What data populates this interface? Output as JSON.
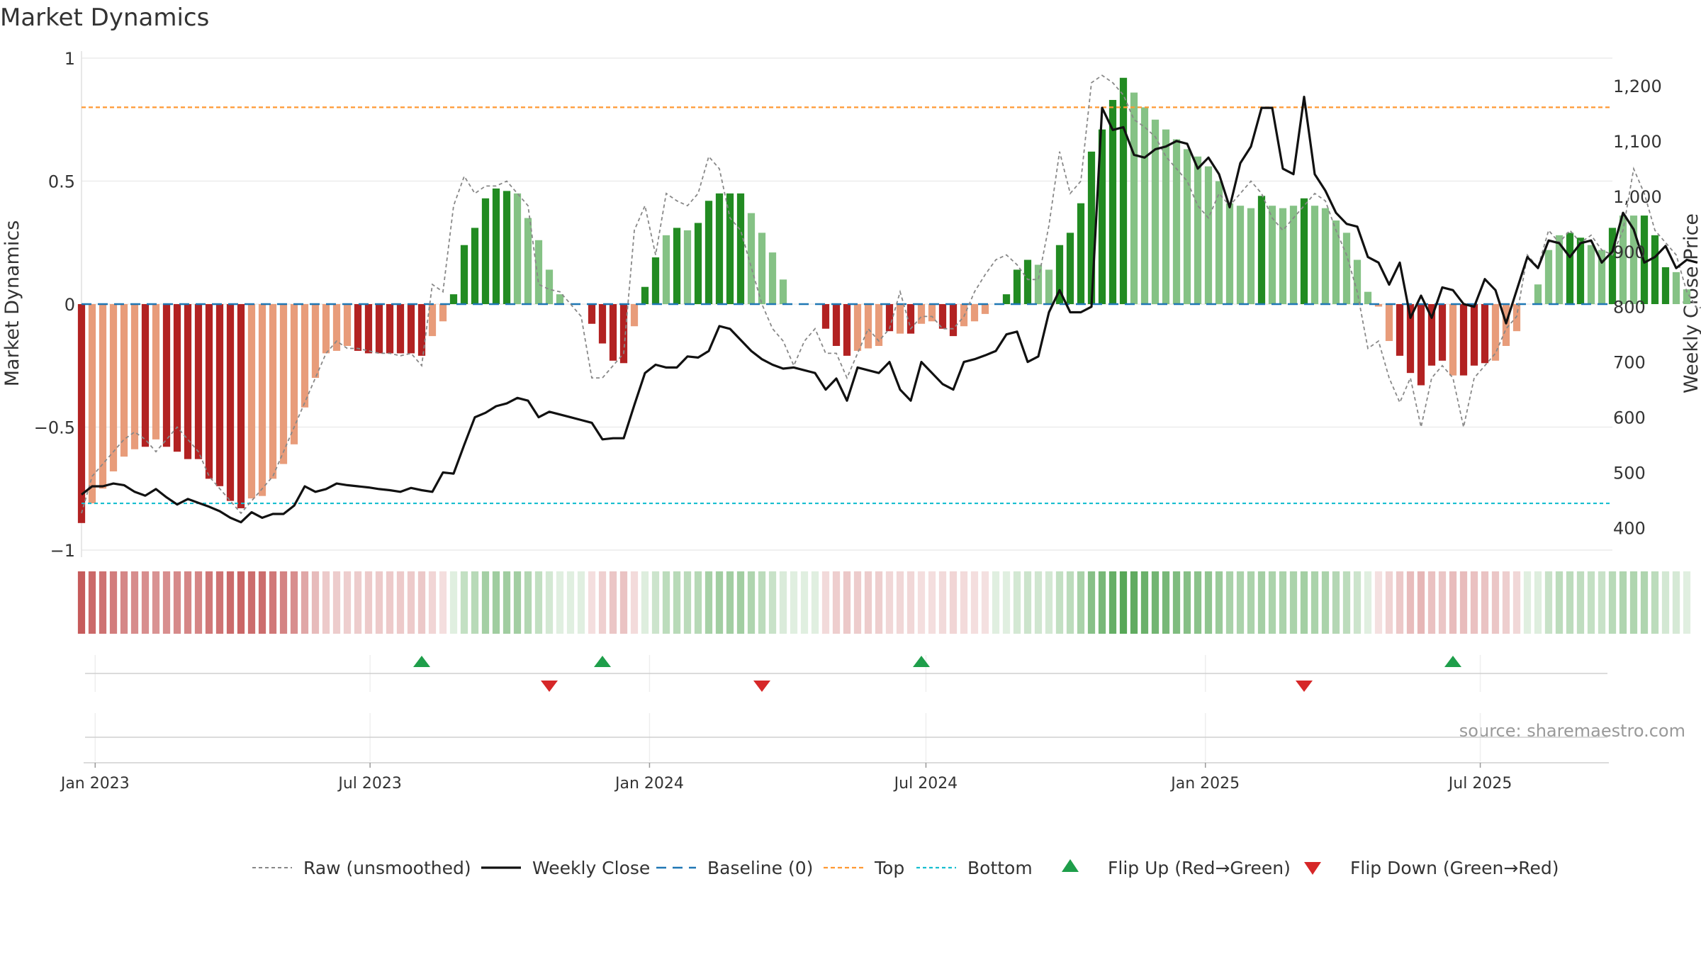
{
  "chart_data": {
    "type": "bar",
    "title": "Market Dynamics",
    "ylabel_left": "Market Dynamics",
    "ylabel_right": "Weekly Close Price",
    "source": "source: sharemaestro.com",
    "left_axis": {
      "ylim": [
        -1,
        1
      ],
      "ticks": [
        1,
        0.5,
        0,
        -0.5,
        -1
      ],
      "tick_labels": [
        "1",
        "0.5",
        "0",
        "−0.5",
        "−1"
      ]
    },
    "right_axis": {
      "ylim": [
        330,
        1250
      ],
      "ticks": [
        1200,
        1100,
        1000,
        900,
        800,
        700,
        600,
        500,
        400
      ],
      "tick_labels": [
        "1,200",
        "1,100",
        "1,000",
        "900",
        "800",
        "700",
        "600",
        "500",
        "400"
      ]
    },
    "x_axis": {
      "start": "2022-12-23",
      "end": "2025-09-26",
      "ticks": [
        "2023-01-01",
        "2023-07-01",
        "2024-01-01",
        "2024-07-01",
        "2025-01-01",
        "2025-07-01"
      ],
      "tick_labels": [
        "Jan 2023",
        "Jul 2023",
        "Jan 2024",
        "Jul 2024",
        "Jan 2025",
        "Jul 2025"
      ]
    },
    "reference_lines": {
      "top": 0.8,
      "bottom": -0.81,
      "baseline": 0
    },
    "colors": {
      "strong_green": "#228b22",
      "light_green": "#85c285",
      "strong_red": "#b22222",
      "light_red": "#e89c7a",
      "close": "#111111",
      "raw": "#888888",
      "baseline": "#1f77b4",
      "top": "#ff9933",
      "bottom": "#17becf",
      "flip_up": "#1e9e4a",
      "flip_down": "#d62728"
    },
    "series": [
      {
        "name": "Weekly Close",
        "dates_start": "2022-12-23",
        "interval_days": 7,
        "values": [
          460,
          475,
          475,
          480,
          477,
          465,
          458,
          470,
          455,
          442,
          452,
          445,
          438,
          430,
          418,
          410,
          428,
          418,
          425,
          425,
          440,
          475,
          465,
          470,
          480,
          477,
          475,
          473,
          470,
          468,
          465,
          472,
          468,
          465,
          500,
          498,
          550,
          600,
          608,
          620,
          625,
          635,
          630,
          600,
          610,
          605,
          600,
          595,
          590,
          560,
          562,
          562,
          622,
          680,
          695,
          690,
          690,
          710,
          708,
          720,
          765,
          760,
          740,
          720,
          705,
          695,
          688,
          690,
          685,
          680,
          650,
          670,
          630,
          690,
          685,
          680,
          700,
          650,
          630,
          700,
          680,
          660,
          650,
          700,
          705,
          712,
          720,
          750,
          755,
          700,
          710,
          790,
          830,
          790,
          790,
          800,
          1160,
          1120,
          1125,
          1075,
          1070,
          1085,
          1090,
          1100,
          1095,
          1050,
          1070,
          1040,
          980,
          1060,
          1090,
          1160,
          1160,
          1050,
          1040,
          1180,
          1040,
          1010,
          970,
          950,
          945,
          890,
          880,
          840,
          880,
          780,
          820,
          780,
          835,
          830,
          805,
          800,
          850,
          830,
          770,
          830,
          890,
          870,
          920,
          915,
          890,
          915,
          920,
          880,
          900,
          970,
          940,
          880,
          890,
          910,
          870,
          885,
          880
        ]
      },
      {
        "name": "Raw (unsmoothed)",
        "dates_start": "2022-12-23",
        "interval_days": 7,
        "values": [
          -0.85,
          -0.7,
          -0.65,
          -0.6,
          -0.55,
          -0.52,
          -0.55,
          -0.6,
          -0.55,
          -0.5,
          -0.55,
          -0.6,
          -0.7,
          -0.75,
          -0.8,
          -0.85,
          -0.8,
          -0.75,
          -0.7,
          -0.6,
          -0.5,
          -0.4,
          -0.3,
          -0.2,
          -0.15,
          -0.18,
          -0.18,
          -0.19,
          -0.2,
          -0.2,
          -0.21,
          -0.2,
          -0.25,
          0.08,
          0.05,
          0.4,
          0.52,
          0.45,
          0.48,
          0.48,
          0.5,
          0.45,
          0.4,
          0.08,
          0.06,
          0.05,
          0.0,
          -0.05,
          -0.3,
          -0.3,
          -0.25,
          -0.2,
          0.3,
          0.4,
          0.2,
          0.45,
          0.42,
          0.4,
          0.45,
          0.6,
          0.55,
          0.35,
          0.3,
          0.15,
          0.0,
          -0.1,
          -0.15,
          -0.25,
          -0.15,
          -0.1,
          -0.2,
          -0.2,
          -0.3,
          -0.2,
          -0.1,
          -0.15,
          -0.1,
          0.05,
          -0.1,
          -0.05,
          -0.05,
          -0.1,
          -0.1,
          -0.05,
          0.05,
          0.12,
          0.18,
          0.2,
          0.16,
          0.1,
          0.1,
          0.32,
          0.62,
          0.45,
          0.5,
          0.9,
          0.93,
          0.9,
          0.85,
          0.75,
          0.72,
          0.68,
          0.6,
          0.55,
          0.5,
          0.4,
          0.35,
          0.45,
          0.4,
          0.45,
          0.5,
          0.45,
          0.35,
          0.3,
          0.35,
          0.4,
          0.45,
          0.42,
          0.3,
          0.2,
          0.05,
          -0.18,
          -0.15,
          -0.3,
          -0.4,
          -0.3,
          -0.5,
          -0.3,
          -0.25,
          -0.3,
          -0.5,
          -0.3,
          -0.25,
          -0.2,
          -0.1,
          -0.05,
          0.2,
          0.15,
          0.3,
          0.25,
          0.3,
          0.25,
          0.28,
          0.22,
          0.2,
          0.3,
          0.55,
          0.45,
          0.3,
          0.25,
          0.2,
          0.05,
          -0.02,
          0.0
        ]
      },
      {
        "name": "Baseline (0)",
        "value": 0
      },
      {
        "name": "Top",
        "value": 0.8
      },
      {
        "name": "Bottom",
        "value": -0.81
      },
      {
        "name": "Flip Up (Red→Green)",
        "dates": [
          "2023-08-04",
          "2023-12-01",
          "2024-06-28",
          "2025-06-13"
        ]
      },
      {
        "name": "Flip Down (Green→Red)",
        "dates": [
          "2023-10-27",
          "2024-03-15",
          "2025-03-07"
        ]
      }
    ],
    "bars": {
      "dates_start": "2022-12-23",
      "interval_days": 7,
      "values": [
        -0.89,
        -0.81,
        -0.75,
        -0.68,
        -0.62,
        -0.59,
        -0.58,
        -0.55,
        -0.58,
        -0.6,
        -0.63,
        -0.63,
        -0.71,
        -0.74,
        -0.8,
        -0.83,
        -0.79,
        -0.78,
        -0.71,
        -0.65,
        -0.57,
        -0.42,
        -0.3,
        -0.2,
        -0.19,
        -0.17,
        -0.19,
        -0.2,
        -0.2,
        -0.2,
        -0.2,
        -0.2,
        -0.21,
        -0.13,
        -0.07,
        0.04,
        0.24,
        0.31,
        0.43,
        0.47,
        0.46,
        0.45,
        0.35,
        0.26,
        0.14,
        0.04,
        0.0,
        0.0,
        -0.08,
        -0.16,
        -0.23,
        -0.24,
        -0.09,
        0.07,
        0.19,
        0.28,
        0.31,
        0.3,
        0.33,
        0.42,
        0.45,
        0.45,
        0.45,
        0.37,
        0.29,
        0.21,
        0.1,
        0.0,
        0.0,
        0.0,
        -0.1,
        -0.17,
        -0.21,
        -0.19,
        -0.18,
        -0.17,
        -0.11,
        -0.12,
        -0.12,
        -0.08,
        -0.07,
        -0.1,
        -0.13,
        -0.09,
        -0.07,
        -0.04,
        0.0,
        0.04,
        0.14,
        0.18,
        0.16,
        0.14,
        0.24,
        0.29,
        0.41,
        0.62,
        0.71,
        0.83,
        0.92,
        0.86,
        0.8,
        0.75,
        0.71,
        0.67,
        0.63,
        0.6,
        0.56,
        0.5,
        0.41,
        0.4,
        0.39,
        0.44,
        0.4,
        0.39,
        0.4,
        0.43,
        0.4,
        0.39,
        0.34,
        0.29,
        0.18,
        0.05,
        -0.01,
        -0.15,
        -0.21,
        -0.28,
        -0.33,
        -0.25,
        -0.23,
        -0.29,
        -0.29,
        -0.25,
        -0.24,
        -0.23,
        -0.17,
        -0.11,
        0.0,
        0.08,
        0.22,
        0.28,
        0.29,
        0.27,
        0.24,
        0.22,
        0.31,
        0.36,
        0.36,
        0.36,
        0.28,
        0.15,
        0.13,
        0.06
      ],
      "strong": [
        1,
        0,
        0,
        0,
        0,
        0,
        1,
        0,
        1,
        1,
        1,
        1,
        1,
        1,
        1,
        1,
        0,
        0,
        0,
        0,
        0,
        0,
        0,
        0,
        0,
        0,
        1,
        1,
        1,
        1,
        1,
        1,
        1,
        0,
        0,
        1,
        1,
        1,
        1,
        1,
        1,
        0,
        0,
        0,
        0,
        0,
        0,
        0,
        1,
        1,
        1,
        1,
        0,
        1,
        1,
        0,
        1,
        0,
        1,
        1,
        1,
        1,
        1,
        0,
        0,
        0,
        0,
        0,
        0,
        0,
        1,
        1,
        1,
        0,
        0,
        0,
        1,
        0,
        1,
        0,
        0,
        1,
        1,
        0,
        0,
        0,
        0,
        1,
        1,
        1,
        0,
        0,
        1,
        1,
        1,
        1,
        1,
        1,
        1,
        0,
        0,
        0,
        0,
        0,
        0,
        0,
        0,
        0,
        0,
        0,
        0,
        1,
        0,
        0,
        0,
        1,
        0,
        0,
        0,
        0,
        0,
        0,
        0,
        0,
        1,
        1,
        1,
        1,
        1,
        0,
        1,
        1,
        1,
        0,
        0,
        0,
        0,
        0,
        0,
        0,
        1,
        1,
        0,
        0,
        1,
        0,
        0,
        1,
        1,
        1,
        0,
        0,
        0,
        0
      ]
    },
    "legend": [
      "Raw (unsmoothed)",
      "Weekly Close",
      "Baseline (0)",
      "Top",
      "Bottom",
      "Flip Up (Red→Green)",
      "Flip Down (Green→Red)"
    ]
  }
}
